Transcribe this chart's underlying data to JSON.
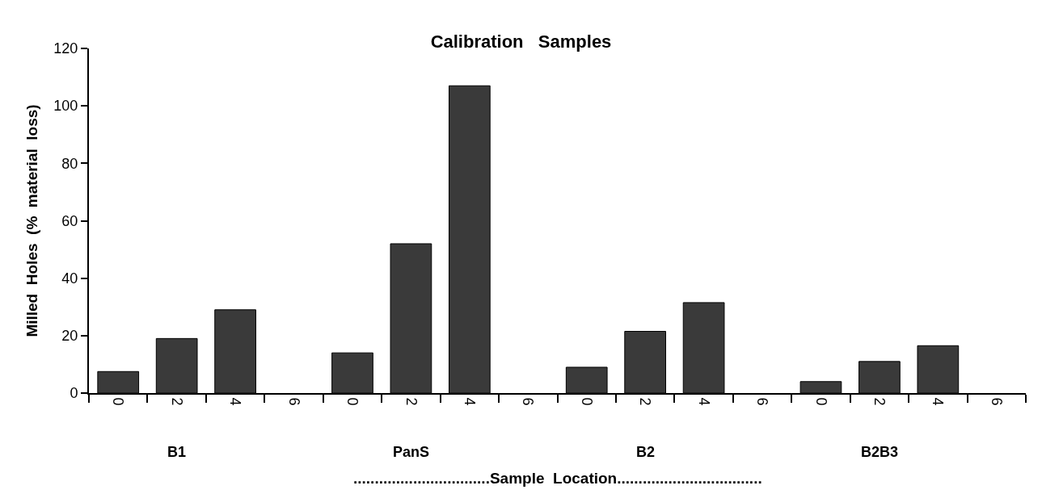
{
  "chart_data": {
    "type": "bar",
    "title": "Calibration   Samples",
    "ylabel": "Milled  Holes  (%  material  loss)",
    "xlabel": "................................Sample  Location..................................",
    "categories": [
      "0",
      "2",
      "4",
      "6",
      "0",
      "2",
      "4",
      "6",
      "0",
      "2",
      "4",
      "6",
      "0",
      "2",
      "4",
      "6"
    ],
    "values": [
      7.5,
      19,
      29,
      null,
      14,
      52,
      107,
      null,
      9,
      21.5,
      31.5,
      null,
      4,
      11,
      16.5,
      null
    ],
    "color": "#3a3a3a",
    "ylim": [
      0,
      120
    ],
    "yticks": [
      0,
      20,
      40,
      60,
      80,
      100,
      120
    ],
    "annotations": [
      "B1",
      "PanS",
      "B2",
      "B2B3"
    ]
  }
}
